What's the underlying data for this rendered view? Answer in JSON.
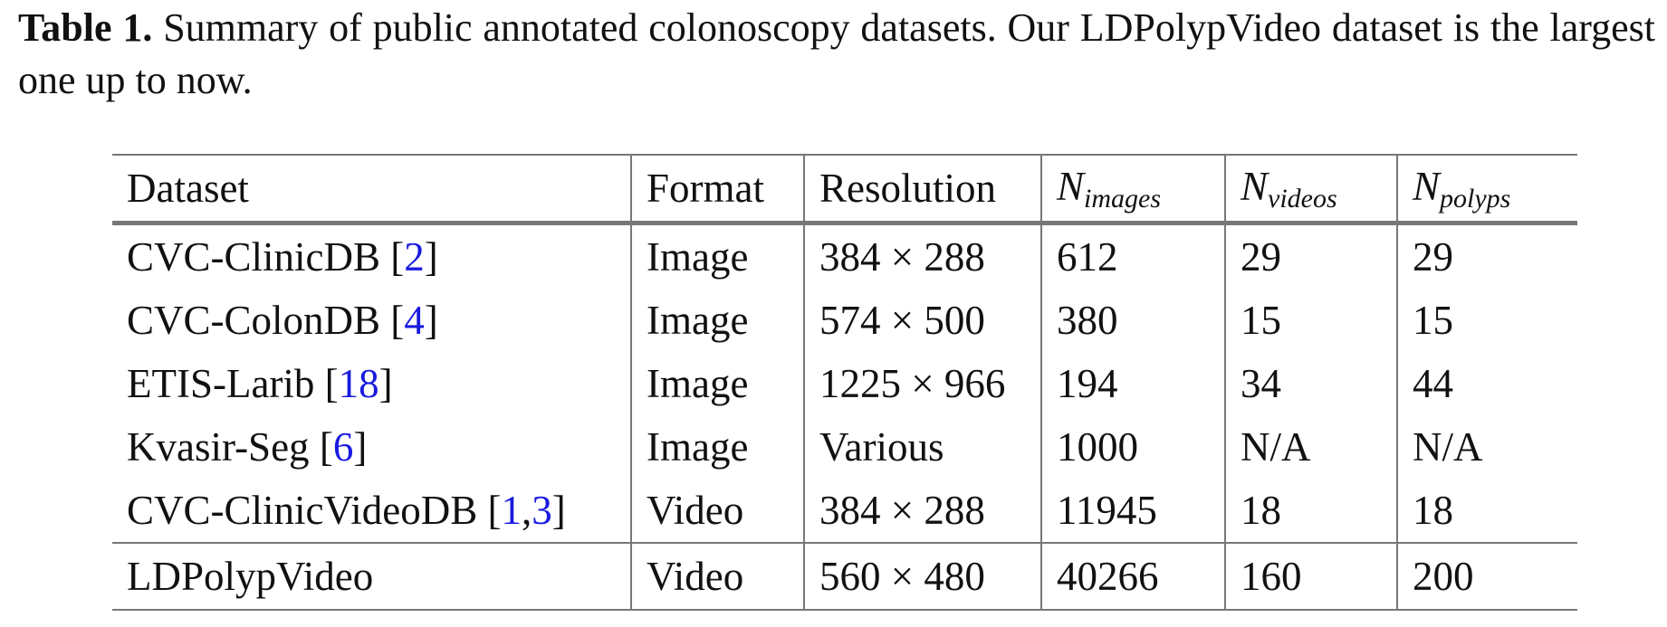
{
  "caption": {
    "label": "Table 1.",
    "text": "Summary of public annotated colonoscopy datasets. Our LDPolypVideo dataset is the largest one up to now."
  },
  "table": {
    "headers": {
      "dataset": "Dataset",
      "format": "Format",
      "resolution": "Resolution",
      "n_images": {
        "base": "N",
        "sub": "images"
      },
      "n_videos": {
        "base": "N",
        "sub": "videos"
      },
      "n_polyps": {
        "base": "N",
        "sub": "polyps"
      }
    },
    "rows": [
      {
        "name": "CVC-ClinicDB",
        "refs": [
          "2"
        ],
        "format": "Image",
        "resolution": "384 × 288",
        "n_images": "612",
        "n_videos": "29",
        "n_polyps": "29"
      },
      {
        "name": "CVC-ColonDB",
        "refs": [
          "4"
        ],
        "format": "Image",
        "resolution": "574 × 500",
        "n_images": "380",
        "n_videos": "15",
        "n_polyps": "15"
      },
      {
        "name": "ETIS-Larib",
        "refs": [
          "18"
        ],
        "format": "Image",
        "resolution": "1225 × 966",
        "n_images": "194",
        "n_videos": "34",
        "n_polyps": "44"
      },
      {
        "name": "Kvasir-Seg",
        "refs": [
          "6"
        ],
        "format": "Image",
        "resolution": "Various",
        "n_images": "1000",
        "n_videos": "N/A",
        "n_polyps": "N/A"
      },
      {
        "name": "CVC-ClinicVideoDB",
        "refs": [
          "1",
          "3"
        ],
        "format": "Video",
        "resolution": "384 × 288",
        "n_images": "11945",
        "n_videos": "18",
        "n_polyps": "18"
      }
    ],
    "highlight_row": {
      "name": "LDPolypVideo",
      "format": "Video",
      "resolution": "560 × 480",
      "n_images": "40266",
      "n_videos": "160",
      "n_polyps": "200"
    },
    "citation_color": "#1a1ae0"
  }
}
